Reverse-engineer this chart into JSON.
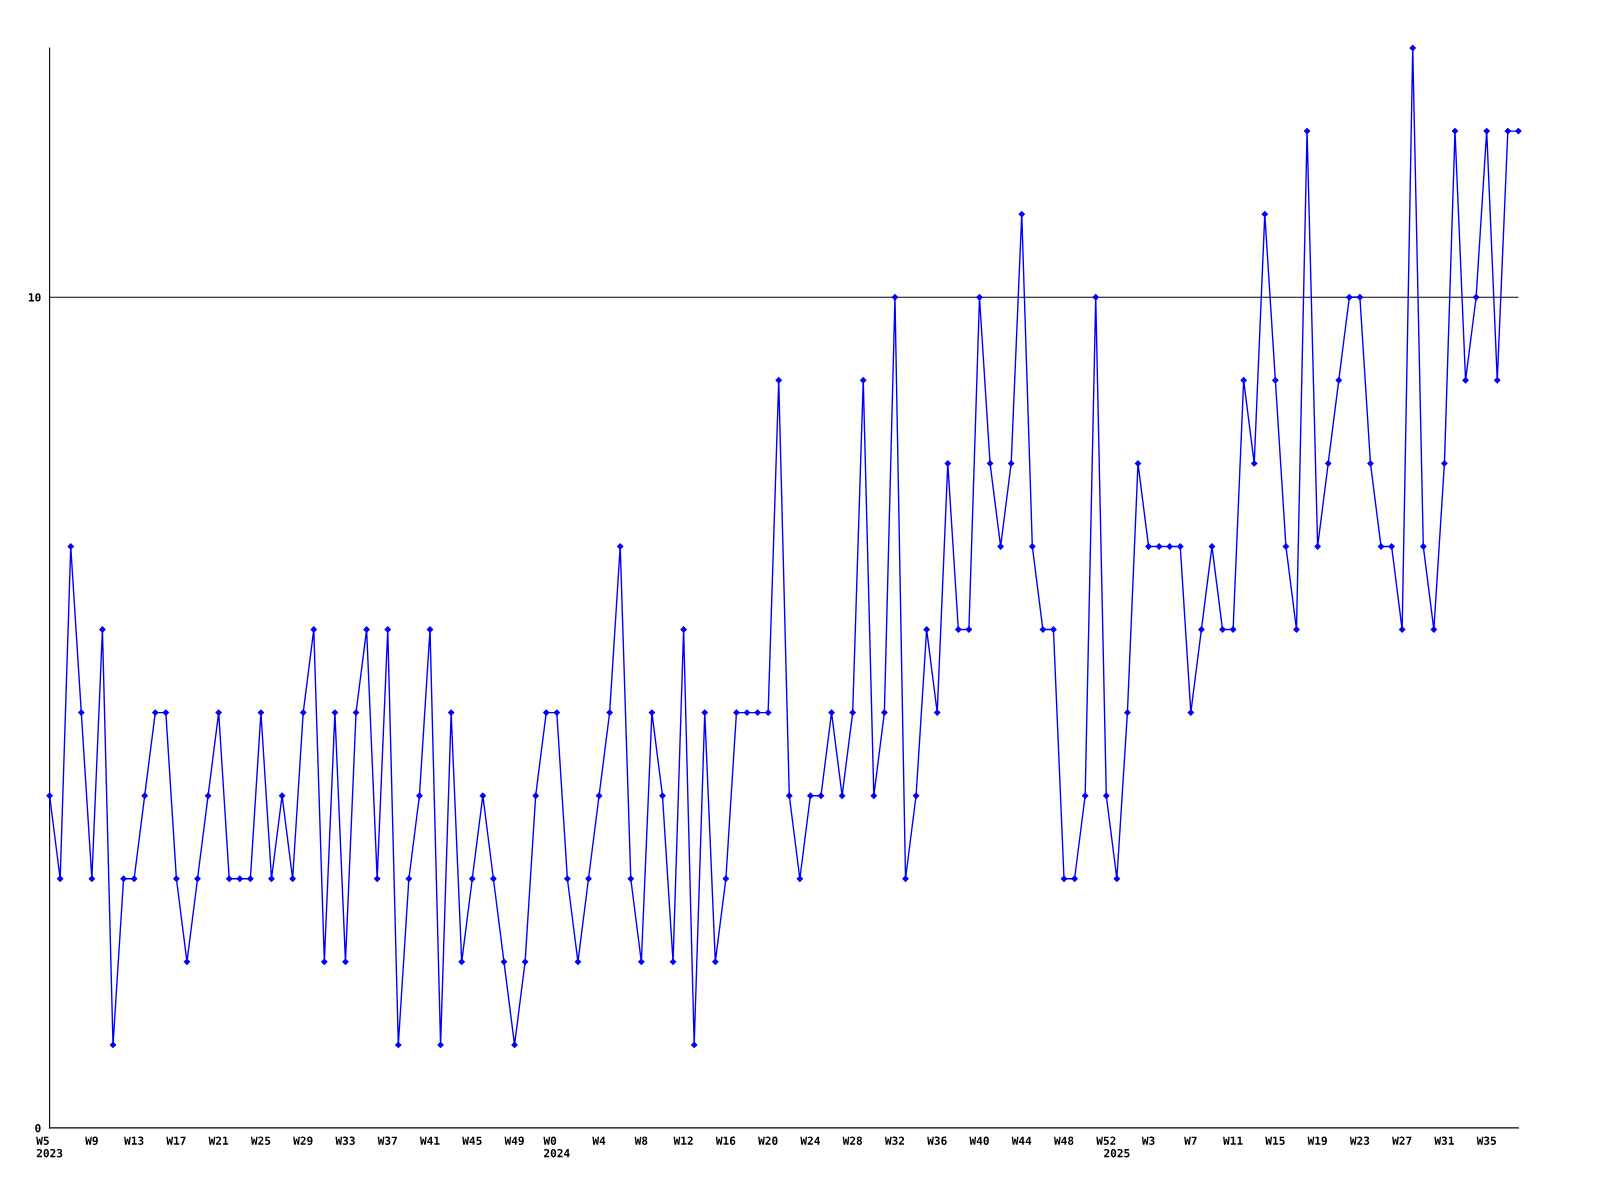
{
  "chart_data": {
    "type": "line",
    "categories": [
      "W5\n2023",
      null,
      null,
      null,
      "W9",
      null,
      null,
      null,
      "W13",
      null,
      null,
      null,
      "W17",
      null,
      null,
      null,
      "W21",
      null,
      null,
      null,
      "W25",
      null,
      null,
      null,
      "W29",
      null,
      null,
      null,
      "W33",
      null,
      null,
      null,
      "W37",
      null,
      null,
      null,
      "W41",
      null,
      null,
      null,
      "W45",
      null,
      null,
      null,
      "W49",
      null,
      null,
      null,
      "W0\n2024",
      null,
      null,
      null,
      "W4",
      null,
      null,
      null,
      "W8",
      null,
      null,
      null,
      "W12",
      null,
      null,
      null,
      "W16",
      null,
      null,
      null,
      "W20",
      null,
      null,
      null,
      "W24",
      null,
      null,
      null,
      "W28",
      null,
      null,
      null,
      "W32",
      null,
      null,
      null,
      "W36",
      null,
      null,
      null,
      "W40",
      null,
      null,
      null,
      "W44",
      null,
      null,
      null,
      "W48",
      null,
      null,
      null,
      "W52",
      "\n2025",
      null,
      null,
      "W3",
      null,
      null,
      null,
      "W7",
      null,
      null,
      null,
      "W11",
      null,
      null,
      null,
      "W15",
      null,
      null,
      null,
      "W19",
      null,
      null,
      null,
      "W23",
      null,
      null,
      null,
      "W27",
      null,
      null,
      null,
      "W31",
      null,
      null,
      null,
      "W35",
      null,
      null,
      null
    ],
    "series": [
      {
        "color": "#0000ff",
        "values": [
          4,
          3,
          7,
          5,
          3,
          6,
          1,
          3,
          3,
          4,
          5,
          5,
          3,
          2,
          3,
          4,
          5,
          3,
          3,
          3,
          5,
          3,
          4,
          3,
          5,
          6,
          2,
          5,
          2,
          5,
          6,
          3,
          6,
          1,
          3,
          4,
          6,
          1,
          5,
          2,
          3,
          4,
          3,
          2,
          1,
          2,
          4,
          5,
          5,
          3,
          2,
          3,
          4,
          5,
          7,
          3,
          2,
          5,
          4,
          2,
          6,
          1,
          5,
          2,
          3,
          5,
          5,
          5,
          5,
          9,
          4,
          3,
          4,
          4,
          5,
          4,
          5,
          9,
          4,
          5,
          10,
          3,
          4,
          6,
          5,
          8,
          6,
          6,
          10,
          8,
          7,
          8,
          11,
          7,
          6,
          6,
          3,
          3,
          4,
          10,
          4,
          3,
          5,
          8,
          7,
          7,
          7,
          7,
          5,
          6,
          7,
          6,
          6,
          9,
          8,
          11,
          9,
          7,
          6,
          12,
          7,
          8,
          9,
          10,
          10,
          8,
          7,
          7,
          6,
          13,
          7,
          6,
          8,
          12,
          9,
          10,
          12,
          9,
          12,
          12
        ]
      }
    ],
    "ylim": [
      0,
      13
    ],
    "yticks": [
      0,
      10
    ],
    "grid": "y",
    "marker": "diamond",
    "line_style": "solid"
  }
}
